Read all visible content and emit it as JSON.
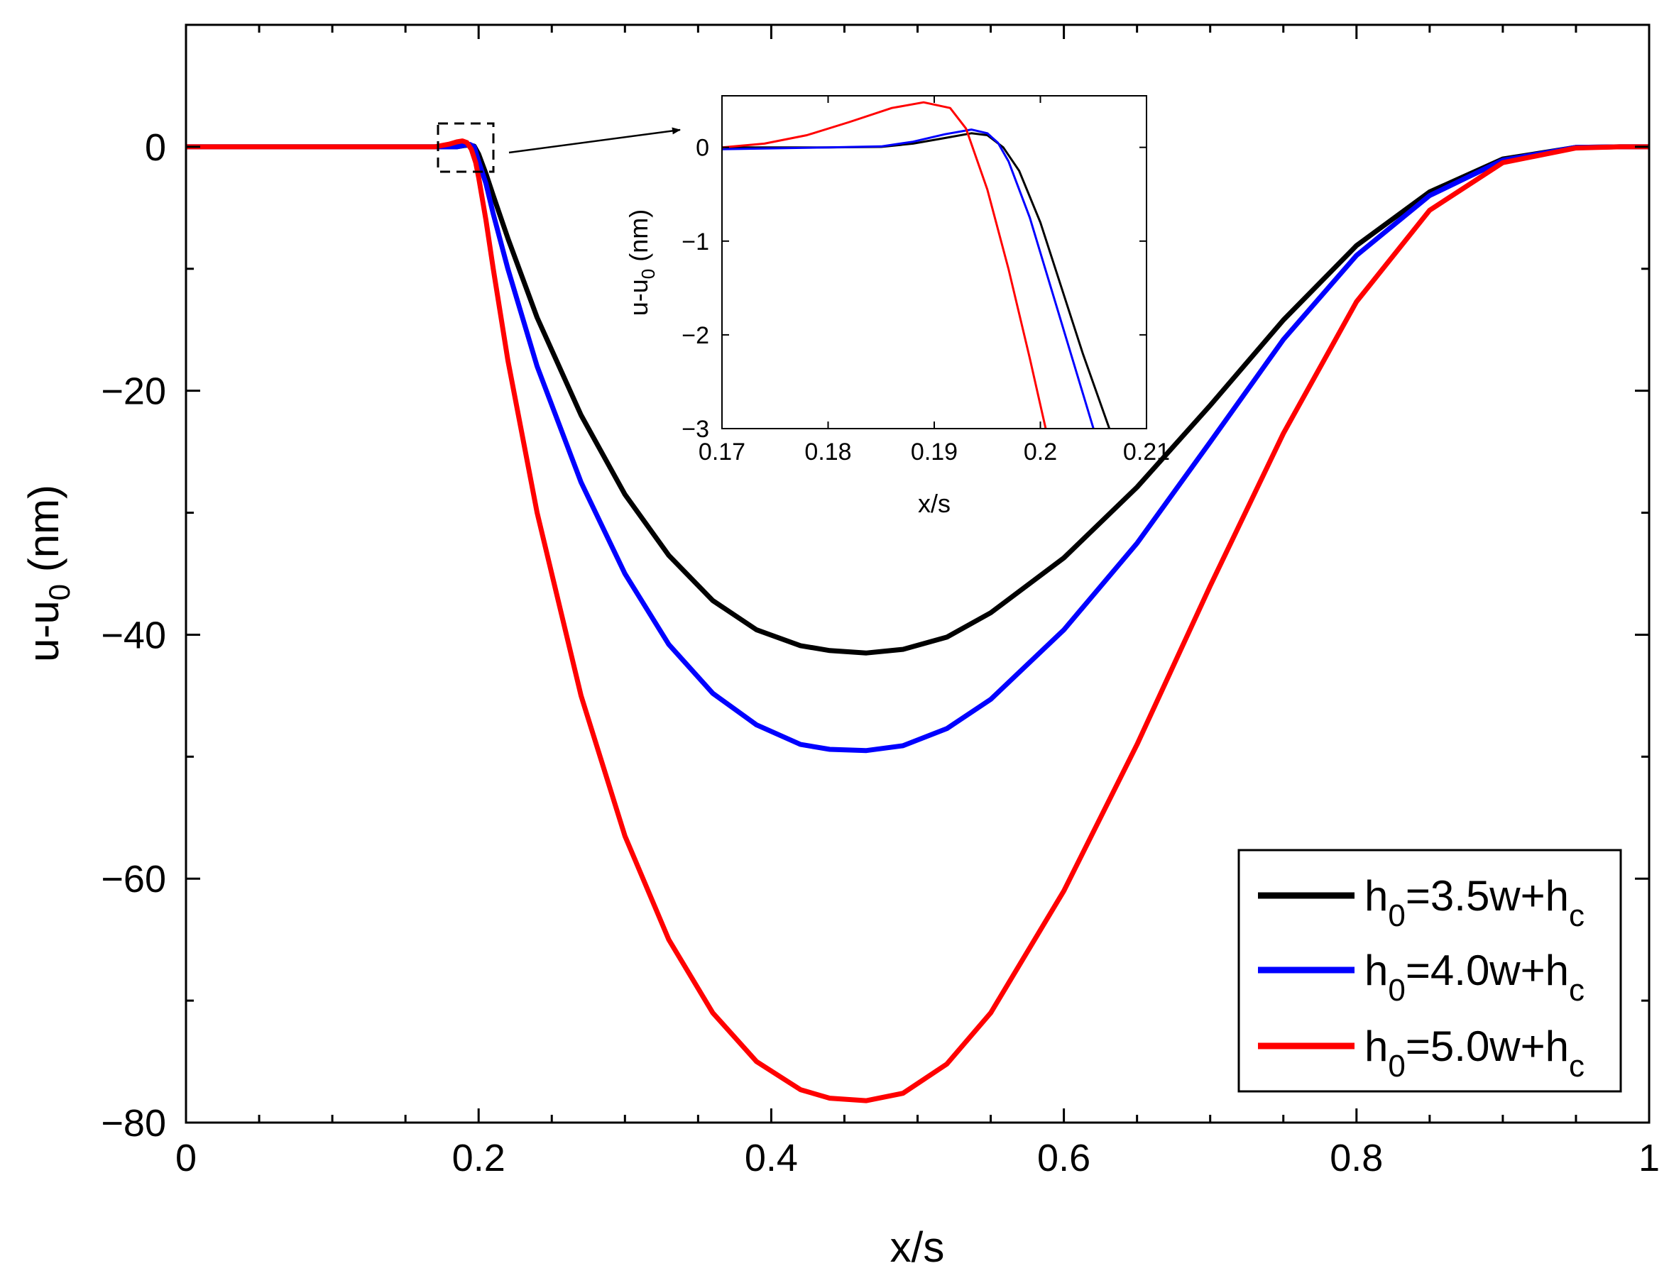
{
  "chart_data": [
    {
      "type": "line",
      "role": "main",
      "xlabel": "x/s",
      "ylabel": {
        "base": "u-u",
        "sub": "0",
        "unit": " (nm)"
      },
      "xlim": [
        0,
        1
      ],
      "ylim": [
        -80,
        10
      ],
      "xticks": [
        0,
        0.2,
        0.4,
        0.6,
        0.8,
        1
      ],
      "xtick_labels": [
        "0",
        "0.2",
        "0.4",
        "0.6",
        "0.8",
        "1"
      ],
      "yticks": [
        0,
        -20,
        -40,
        -60,
        -80
      ],
      "ytick_labels": [
        "0",
        "−20",
        "−40",
        "−60",
        "−80"
      ],
      "grid": false,
      "legend_position": "bottom-right",
      "series": [
        {
          "name": "h0=3.5w+hc",
          "label": {
            "h": "h",
            "h_sub": "0",
            "mid": "=3.5w+h",
            "c_sub": "c"
          },
          "color": "#000000",
          "x": [
            0,
            0.17,
            0.18,
            0.185,
            0.19,
            0.194,
            0.197,
            0.2,
            0.205,
            0.21,
            0.22,
            0.24,
            0.27,
            0.3,
            0.33,
            0.36,
            0.39,
            0.42,
            0.44,
            0.465,
            0.49,
            0.52,
            0.55,
            0.6,
            0.65,
            0.7,
            0.75,
            0.8,
            0.85,
            0.9,
            0.95,
            0.98,
            1.0
          ],
          "y": [
            0,
            0,
            0,
            0,
            0.1,
            0.15,
            0.05,
            -0.6,
            -2.2,
            -4,
            -7.5,
            -14,
            -22,
            -28.5,
            -33.5,
            -37.2,
            -39.6,
            -40.9,
            -41.3,
            -41.5,
            -41.2,
            -40.2,
            -38.2,
            -33.7,
            -27.9,
            -21.2,
            -14.2,
            -8.1,
            -3.7,
            -1.0,
            -0.05,
            0,
            0
          ]
        },
        {
          "name": "h0=4.0w+hc",
          "label": {
            "h": "h",
            "h_sub": "0",
            "mid": "=4.0w+h",
            "c_sub": "c"
          },
          "color": "#0000ff",
          "x": [
            0,
            0.17,
            0.18,
            0.185,
            0.19,
            0.194,
            0.197,
            0.2,
            0.205,
            0.21,
            0.22,
            0.24,
            0.27,
            0.3,
            0.33,
            0.36,
            0.39,
            0.42,
            0.44,
            0.465,
            0.49,
            0.52,
            0.55,
            0.6,
            0.65,
            0.7,
            0.75,
            0.8,
            0.85,
            0.9,
            0.95,
            0.98,
            1.0
          ],
          "y": [
            0,
            0,
            0,
            0,
            0.12,
            0.2,
            0,
            -1.2,
            -3,
            -5.5,
            -10,
            -18,
            -27.5,
            -35,
            -40.8,
            -44.8,
            -47.4,
            -49,
            -49.4,
            -49.5,
            -49.1,
            -47.7,
            -45.3,
            -39.6,
            -32.5,
            -24.2,
            -15.8,
            -8.9,
            -4.0,
            -1.1,
            -0.05,
            0,
            0
          ]
        },
        {
          "name": "h0=5.0w+hc",
          "label": {
            "h": "h",
            "h_sub": "0",
            "mid": "=5.0w+h",
            "c_sub": "c"
          },
          "color": "#ff0000",
          "x": [
            0,
            0.17,
            0.18,
            0.185,
            0.189,
            0.192,
            0.195,
            0.198,
            0.2,
            0.205,
            0.21,
            0.22,
            0.24,
            0.27,
            0.3,
            0.33,
            0.36,
            0.39,
            0.42,
            0.44,
            0.465,
            0.49,
            0.52,
            0.55,
            0.6,
            0.65,
            0.7,
            0.75,
            0.8,
            0.85,
            0.9,
            0.95,
            0.98,
            1.0
          ],
          "y": [
            0,
            0,
            0.22,
            0.4,
            0.48,
            0.35,
            -0.2,
            -1.3,
            -2.5,
            -6,
            -10,
            -17.5,
            -30,
            -45,
            -56.5,
            -65,
            -71,
            -75,
            -77.3,
            -78,
            -78.2,
            -77.6,
            -75.2,
            -71,
            -61,
            -49,
            -36,
            -23.5,
            -12.7,
            -5.2,
            -1.3,
            -0.1,
            0,
            0
          ]
        }
      ]
    },
    {
      "type": "line",
      "role": "inset",
      "xlabel": "x/s",
      "ylabel": {
        "base": "u-u",
        "sub": "0",
        "unit": " (nm)"
      },
      "xlim": [
        0.17,
        0.21
      ],
      "ylim": [
        -3,
        0.55
      ],
      "xticks": [
        0.17,
        0.18,
        0.19,
        0.2,
        0.21
      ],
      "xtick_labels": [
        "0.17",
        "0.18",
        "0.19",
        "0.2",
        "0.21"
      ],
      "yticks": [
        0,
        -1,
        -2,
        -3
      ],
      "ytick_labels": [
        "0",
        "−1",
        "−2",
        "−3"
      ],
      "series": [
        {
          "name": "h0=3.5w+hc",
          "color": "#000000",
          "x": [
            0.17,
            0.18,
            0.185,
            0.188,
            0.191,
            0.1935,
            0.195,
            0.1965,
            0.198,
            0.2,
            0.202,
            0.204,
            0.2065
          ],
          "y": [
            0,
            0,
            0.005,
            0.04,
            0.1,
            0.15,
            0.13,
            0.0,
            -0.25,
            -0.8,
            -1.5,
            -2.2,
            -3.0
          ]
        },
        {
          "name": "h0=4.0w+hc",
          "color": "#0000ff",
          "x": [
            0.17,
            0.175,
            0.18,
            0.185,
            0.188,
            0.191,
            0.1935,
            0.195,
            0.196,
            0.197,
            0.199,
            0.201,
            0.203,
            0.205
          ],
          "y": [
            -0.02,
            -0.01,
            0,
            0.01,
            0.06,
            0.14,
            0.19,
            0.15,
            0.05,
            -0.15,
            -0.75,
            -1.5,
            -2.25,
            -3.0
          ]
        },
        {
          "name": "h0=5.0w+hc",
          "color": "#ff0000",
          "x": [
            0.17,
            0.174,
            0.178,
            0.182,
            0.186,
            0.189,
            0.1915,
            0.193,
            0.195,
            0.197,
            0.199,
            0.2005
          ],
          "y": [
            0,
            0.04,
            0.13,
            0.27,
            0.42,
            0.48,
            0.42,
            0.2,
            -0.45,
            -1.3,
            -2.25,
            -3.0
          ]
        }
      ]
    }
  ]
}
